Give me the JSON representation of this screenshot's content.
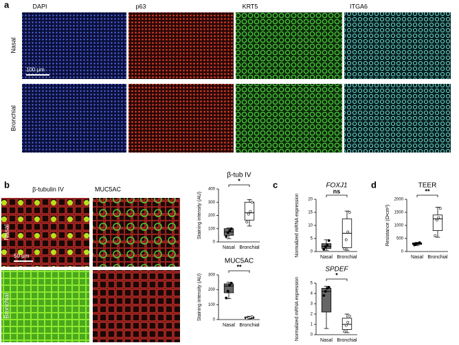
{
  "panel_labels": [
    "a",
    "b",
    "c",
    "d"
  ],
  "panel_a": {
    "columns": [
      "DAPI",
      "p63",
      "KRT5",
      "ITGA6"
    ],
    "rows": [
      "Nasal",
      "Bronchial"
    ],
    "scale_bar": "100 μm"
  },
  "panel_b": {
    "columns": [
      "β-tubulin IV",
      "MUC5AC"
    ],
    "rows": [
      "Nasal",
      "Bronchial"
    ],
    "scale_bar": "50 μm"
  },
  "chart_data": [
    {
      "type": "box",
      "title": "β-tub IV",
      "ylabel": "Staining intensity (AU)",
      "categories": [
        "Nasal",
        "Bronchial"
      ],
      "colors": [
        "#666666",
        "#ffffff"
      ],
      "ylim": [
        0,
        400
      ],
      "yticks": [
        0,
        100,
        200,
        300,
        400
      ],
      "significance": "*",
      "boxes": [
        {
          "min": 25,
          "q1": 50,
          "median": 75,
          "q3": 100,
          "max": 105,
          "points": [
            40,
            70,
            85,
            100
          ]
        },
        {
          "min": 120,
          "q1": 165,
          "median": 220,
          "q3": 300,
          "max": 320,
          "points": [
            150,
            210,
            230,
            300
          ]
        }
      ]
    },
    {
      "type": "box",
      "title": "MUC5AC",
      "ylabel": "Staining intensity (AU)",
      "categories": [
        "Nasal",
        "Bronchial"
      ],
      "colors": [
        "#666666",
        "#ffffff"
      ],
      "ylim": [
        0,
        300
      ],
      "yticks": [
        0,
        100,
        200,
        300
      ],
      "significance": "**",
      "boxes": [
        {
          "min": 140,
          "q1": 180,
          "median": 225,
          "q3": 240,
          "max": 250,
          "points": [
            145,
            190,
            230,
            245
          ]
        },
        {
          "min": 5,
          "q1": 8,
          "median": 12,
          "q3": 18,
          "max": 22,
          "points": [
            6,
            12,
            15,
            20
          ]
        }
      ]
    },
    {
      "type": "box",
      "title": "FOXJ1",
      "title_style": "italic",
      "ylabel": "Normalized mRNA expression",
      "categories": [
        "Nasal",
        "Bronchial"
      ],
      "colors": [
        "#666666",
        "#ffffff"
      ],
      "ylim": [
        0,
        20
      ],
      "yticks": [
        0,
        5,
        10,
        15,
        20
      ],
      "significance": "ns",
      "boxes": [
        {
          "min": 0.5,
          "q1": 1.2,
          "median": 2,
          "q3": 3,
          "max": 4.5,
          "points": [
            0.8,
            1.8,
            2.5,
            4.2
          ]
        },
        {
          "min": 0.5,
          "q1": 1.5,
          "median": 7,
          "q3": 12.5,
          "max": 15.5,
          "points": [
            1,
            4.5,
            7.5,
            15
          ]
        }
      ]
    },
    {
      "type": "box",
      "title": "SPDEF",
      "title_style": "italic",
      "ylabel": "Normalized mRNA expression",
      "categories": [
        "Nasal",
        "Bronchial"
      ],
      "colors": [
        "#666666",
        "#ffffff"
      ],
      "ylim": [
        0,
        5
      ],
      "yticks": [
        0,
        1,
        2,
        3,
        4,
        5
      ],
      "significance": "*",
      "boxes": [
        {
          "min": 0.6,
          "q1": 2.2,
          "median": 4.2,
          "q3": 4.5,
          "max": 4.7,
          "points": [
            3.8,
            4.2,
            4.5,
            4.6
          ]
        },
        {
          "min": 0.2,
          "q1": 0.5,
          "median": 1,
          "q3": 1.6,
          "max": 2,
          "points": [
            0.3,
            0.9,
            1.2,
            1.8
          ]
        }
      ]
    },
    {
      "type": "box",
      "title": "TEER",
      "ylabel": "Resistance (Ω•cm²)",
      "categories": [
        "Nasal",
        "Bronchial"
      ],
      "colors": [
        "#666666",
        "#ffffff"
      ],
      "ylim": [
        0,
        2000
      ],
      "yticks": [
        0,
        500,
        1000,
        1500,
        2000
      ],
      "significance": "**",
      "boxes": [
        {
          "min": 230,
          "q1": 270,
          "median": 300,
          "q3": 330,
          "max": 350,
          "points": [
            250,
            290,
            310,
            340
          ]
        },
        {
          "min": 550,
          "q1": 800,
          "median": 1250,
          "q3": 1400,
          "max": 1700,
          "points": [
            600,
            1200,
            1300,
            1650
          ]
        }
      ]
    }
  ]
}
